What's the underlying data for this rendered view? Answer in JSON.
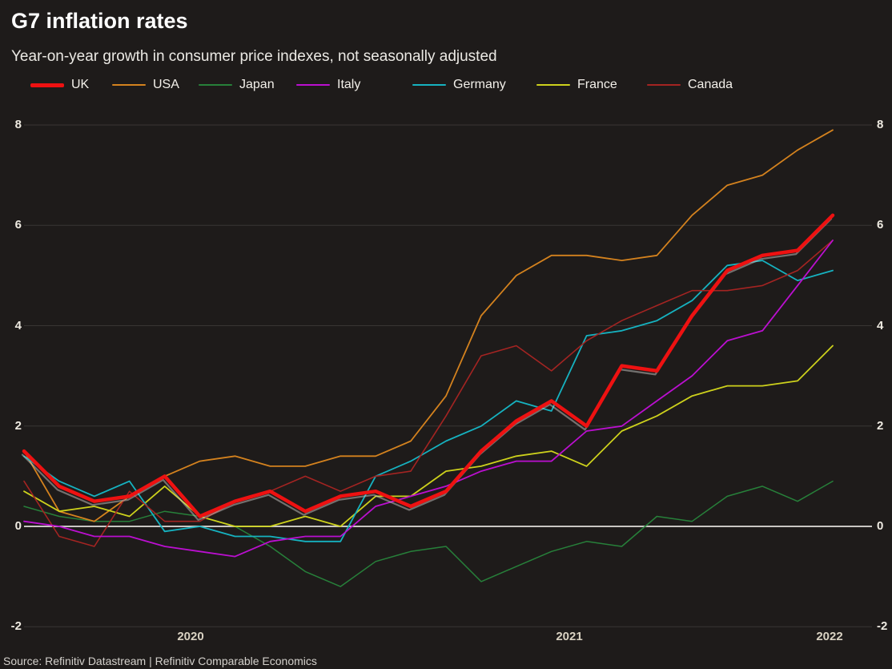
{
  "header": {
    "title": "G7 inflation rates",
    "subtitle": "Year-on-year growth in consumer price indexes, not seasonally adjusted"
  },
  "source_note": "Source: Refinitiv Datastream | Refinitiv Comparable Economics",
  "chart_data": {
    "type": "line",
    "title": "G7 inflation rates",
    "subtitle": "Year-on-year growth in consumer price indexes, not seasonally adjusted",
    "x_frequency": "monthly",
    "x": [
      "2020-03",
      "2020-04",
      "2020-05",
      "2020-06",
      "2020-07",
      "2020-08",
      "2020-09",
      "2020-10",
      "2020-11",
      "2020-12",
      "2021-01",
      "2021-02",
      "2021-03",
      "2021-04",
      "2021-05",
      "2021-06",
      "2021-07",
      "2021-08",
      "2021-09",
      "2021-10",
      "2021-11",
      "2021-12",
      "2022-01",
      "2022-02"
    ],
    "series": [
      {
        "name": "UK",
        "color": "#ee1111",
        "line_width": 4.5,
        "highlighted": true,
        "values": [
          1.5,
          0.8,
          0.5,
          0.6,
          1.0,
          0.2,
          0.5,
          0.7,
          0.3,
          0.6,
          0.7,
          0.4,
          0.7,
          1.5,
          2.1,
          2.5,
          2.0,
          3.2,
          3.1,
          4.2,
          5.1,
          5.4,
          5.5,
          6.2
        ]
      },
      {
        "name": "USA",
        "color": "#d4821e",
        "line_width": 1.8,
        "values": [
          1.5,
          0.3,
          0.1,
          0.6,
          1.0,
          1.3,
          1.4,
          1.2,
          1.2,
          1.4,
          1.4,
          1.7,
          2.6,
          4.2,
          5.0,
          5.4,
          5.4,
          5.3,
          5.4,
          6.2,
          6.8,
          7.0,
          7.5,
          7.9
        ]
      },
      {
        "name": "Japan",
        "color": "#27803a",
        "line_width": 1.5,
        "values": [
          0.4,
          0.2,
          0.1,
          0.1,
          0.3,
          0.2,
          0.0,
          -0.4,
          -0.9,
          -1.2,
          -0.7,
          -0.5,
          -0.4,
          -1.1,
          -0.8,
          -0.5,
          -0.3,
          -0.4,
          0.2,
          0.1,
          0.6,
          0.8,
          0.5,
          0.9
        ]
      },
      {
        "name": "Italy",
        "color": "#bb0fd0",
        "line_width": 1.8,
        "values": [
          0.1,
          0.0,
          -0.2,
          -0.2,
          -0.4,
          -0.5,
          -0.6,
          -0.3,
          -0.2,
          -0.2,
          0.4,
          0.6,
          0.8,
          1.1,
          1.3,
          1.3,
          1.9,
          2.0,
          2.5,
          3.0,
          3.7,
          3.9,
          4.8,
          5.7
        ]
      },
      {
        "name": "Germany",
        "color": "#16b2c0",
        "line_width": 1.8,
        "values": [
          1.4,
          0.9,
          0.6,
          0.9,
          -0.1,
          0.0,
          -0.2,
          -0.2,
          -0.3,
          -0.3,
          1.0,
          1.3,
          1.7,
          2.0,
          2.5,
          2.3,
          3.8,
          3.9,
          4.1,
          4.5,
          5.2,
          5.3,
          4.9,
          5.1
        ]
      },
      {
        "name": "France",
        "color": "#cdd11c",
        "line_width": 1.8,
        "values": [
          0.7,
          0.3,
          0.4,
          0.2,
          0.8,
          0.2,
          0.0,
          0.0,
          0.2,
          0.0,
          0.6,
          0.6,
          1.1,
          1.2,
          1.4,
          1.5,
          1.2,
          1.9,
          2.2,
          2.6,
          2.8,
          2.8,
          2.9,
          3.6
        ]
      },
      {
        "name": "Canada",
        "color": "#a42422",
        "line_width": 1.6,
        "values": [
          0.9,
          -0.2,
          -0.4,
          0.7,
          0.1,
          0.1,
          0.5,
          0.7,
          1.0,
          0.7,
          1.0,
          1.1,
          2.2,
          3.4,
          3.6,
          3.1,
          3.7,
          4.1,
          4.4,
          4.7,
          4.7,
          4.8,
          5.1,
          5.7
        ]
      }
    ],
    "ylim": [
      -2,
      8
    ],
    "yticks": [
      8,
      6,
      4,
      2,
      0,
      -2
    ],
    "ytick_sides": "both",
    "xtick_labels": [
      "2020",
      "2021",
      "2022"
    ],
    "grid": "horizontal",
    "zero_line_highlighted": true,
    "legend_position": "top-left",
    "background": "#1e1b1a",
    "uk_line_shadow": true
  }
}
